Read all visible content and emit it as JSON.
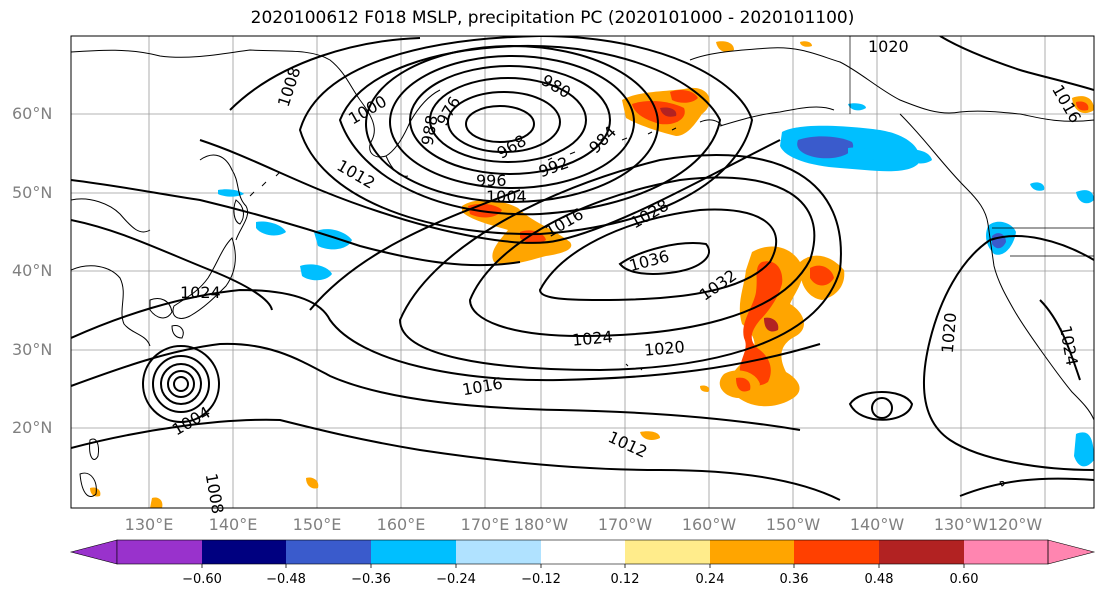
{
  "title": "2020100612 F018 MSLP, precipitation PC (2020101000 - 2020101100)",
  "lat_labels": [
    "60°N",
    "50°N",
    "40°N",
    "30°N",
    "20°N"
  ],
  "lon_labels": [
    "130°E",
    "140°E",
    "150°E",
    "160°E",
    "170°E",
    "180°W",
    "170°W",
    "160°W",
    "150°W",
    "140°W",
    "130°W",
    "120°W"
  ],
  "isobar_labels": [
    "1008",
    "1000",
    "988",
    "976",
    "980",
    "968",
    "984",
    "992",
    "996",
    "1004",
    "1012",
    "1016",
    "1028",
    "1036",
    "1032",
    "1024",
    "1024",
    "1020",
    "1016",
    "1012",
    "1004",
    "1008",
    "1020",
    "1020",
    "1016",
    "1024"
  ],
  "colorbar": {
    "ticks": [
      "−0.60",
      "−0.48",
      "−0.36",
      "−0.24",
      "−0.12",
      "0.12",
      "0.24",
      "0.36",
      "0.48",
      "0.60"
    ],
    "colors": [
      "#9932cc",
      "#000080",
      "#3a5bcc",
      "#00bfff",
      "#b0e2ff",
      "#ffffff",
      "#ffec8b",
      "#ffa500",
      "#ff4000",
      "#b22222",
      "#ff85b0"
    ]
  }
}
